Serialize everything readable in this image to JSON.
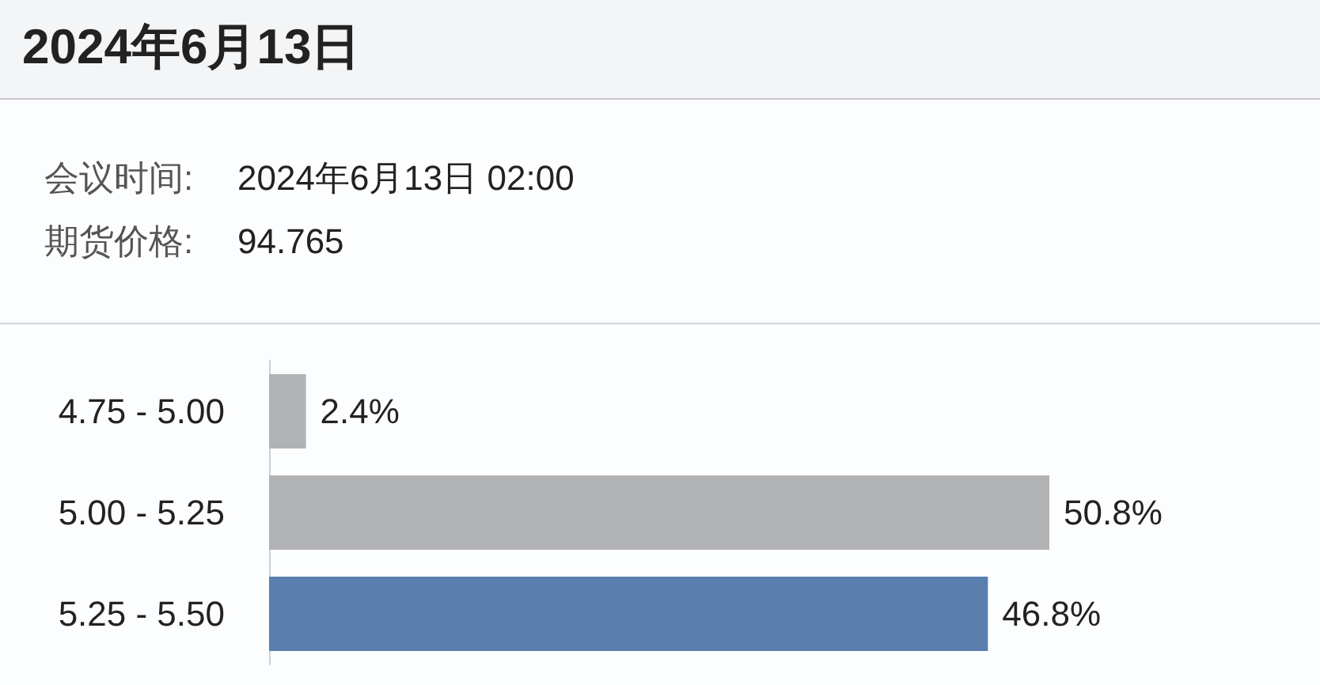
{
  "chart_data": {
    "type": "bar",
    "orientation": "horizontal",
    "title": "2024年6月13日",
    "annotations": [
      "会议时间:",
      "2024年6月13日 02:00",
      "期货价格:",
      "94.765"
    ],
    "categories": [
      "4.75 - 5.00",
      "5.00 - 5.25",
      "5.25 - 5.50"
    ],
    "values": [
      2.4,
      50.8,
      46.8
    ],
    "colors": [
      "#b1b2b4",
      "#b1b2b4",
      "#5a7fae"
    ],
    "value_labels": [
      "2.4%",
      "50.8%",
      "46.8%"
    ],
    "tick_labels": "y"
  }
}
